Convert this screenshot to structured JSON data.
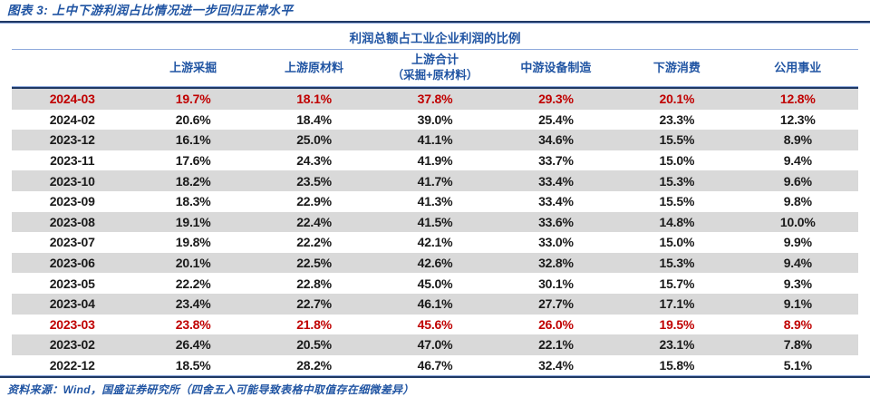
{
  "figure": {
    "title": "图表 3:  上中下游利润占比情况进一步回归正常水平",
    "source": "资料来源：Wind，国盛证券研究所（四舍五入可能导致表格中取值存在细微差异）"
  },
  "colors": {
    "accent_blue": "#2155A3",
    "rule_navy": "#1F3864",
    "rule_light_blue": "#8FAADC",
    "highlight_red": "#C00000",
    "row_stripe_gray": "#D9D9D9"
  },
  "chart_data": {
    "type": "table",
    "title": "利润总额占工业企业利润的比例",
    "legend_position": "none",
    "grid": false,
    "row_header_label": "",
    "columns": [
      {
        "label": "上游采掘"
      },
      {
        "label": "上游原材料"
      },
      {
        "label": "上游合计",
        "sublabel": "（采掘+原材料）"
      },
      {
        "label": "中游设备制造"
      },
      {
        "label": "下游消费"
      },
      {
        "label": "公用事业"
      }
    ],
    "rows": [
      {
        "period": "2024-03",
        "values": [
          "19.7%",
          "18.1%",
          "37.8%",
          "29.3%",
          "20.1%",
          "12.8%"
        ],
        "highlight": true
      },
      {
        "period": "2024-02",
        "values": [
          "20.6%",
          "18.4%",
          "39.0%",
          "25.4%",
          "23.3%",
          "12.3%"
        ],
        "highlight": false
      },
      {
        "period": "2023-12",
        "values": [
          "16.1%",
          "25.0%",
          "41.1%",
          "34.6%",
          "15.5%",
          "8.9%"
        ],
        "highlight": false
      },
      {
        "period": "2023-11",
        "values": [
          "17.6%",
          "24.3%",
          "41.9%",
          "33.7%",
          "15.0%",
          "9.4%"
        ],
        "highlight": false
      },
      {
        "period": "2023-10",
        "values": [
          "18.2%",
          "23.5%",
          "41.7%",
          "33.4%",
          "15.3%",
          "9.6%"
        ],
        "highlight": false
      },
      {
        "period": "2023-09",
        "values": [
          "18.3%",
          "22.9%",
          "41.3%",
          "33.4%",
          "15.5%",
          "9.8%"
        ],
        "highlight": false
      },
      {
        "period": "2023-08",
        "values": [
          "19.1%",
          "22.4%",
          "41.5%",
          "33.6%",
          "14.8%",
          "10.0%"
        ],
        "highlight": false
      },
      {
        "period": "2023-07",
        "values": [
          "19.8%",
          "22.2%",
          "42.1%",
          "33.0%",
          "15.0%",
          "9.9%"
        ],
        "highlight": false
      },
      {
        "period": "2023-06",
        "values": [
          "20.1%",
          "22.5%",
          "42.6%",
          "32.8%",
          "15.3%",
          "9.4%"
        ],
        "highlight": false
      },
      {
        "period": "2023-05",
        "values": [
          "22.2%",
          "22.8%",
          "45.0%",
          "30.1%",
          "15.7%",
          "9.3%"
        ],
        "highlight": false
      },
      {
        "period": "2023-04",
        "values": [
          "23.4%",
          "22.7%",
          "46.1%",
          "27.7%",
          "17.1%",
          "9.1%"
        ],
        "highlight": false
      },
      {
        "period": "2023-03",
        "values": [
          "23.8%",
          "21.8%",
          "45.6%",
          "26.0%",
          "19.5%",
          "8.9%"
        ],
        "highlight": true
      },
      {
        "period": "2023-02",
        "values": [
          "26.4%",
          "20.5%",
          "47.0%",
          "22.1%",
          "23.1%",
          "7.8%"
        ],
        "highlight": false
      },
      {
        "period": "2022-12",
        "values": [
          "18.5%",
          "28.2%",
          "46.7%",
          "32.4%",
          "15.8%",
          "5.1%"
        ],
        "highlight": false
      }
    ]
  }
}
